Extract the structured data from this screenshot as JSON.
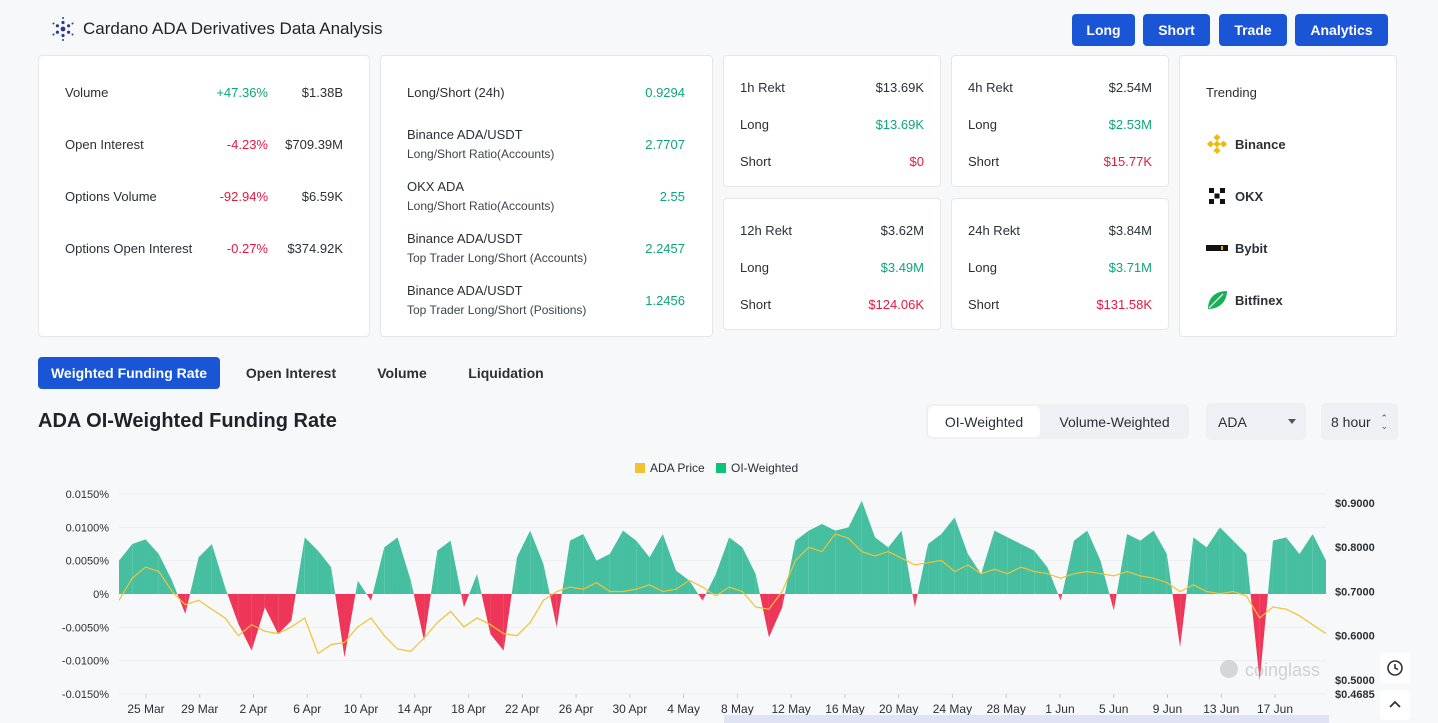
{
  "header": {
    "title": "Cardano ADA Derivatives Data Analysis",
    "buttons": [
      "Long",
      "Short",
      "Trade",
      "Analytics"
    ]
  },
  "colors": {
    "accent": "#1a55d5",
    "positive": "#0ea57b",
    "negative": "#e8173f",
    "area_pos": "#45bfa0",
    "price_line": "#f1c232"
  },
  "stats": [
    {
      "label": "Volume",
      "change": "+47.36%",
      "value": "$1.38B"
    },
    {
      "label": "Open Interest",
      "change": "-4.23%",
      "value": "$709.39M"
    },
    {
      "label": "Options Volume",
      "change": "-92.94%",
      "value": "$6.59K"
    },
    {
      "label": "Options Open Interest",
      "change": "-0.27%",
      "value": "$374.92K"
    }
  ],
  "ratios": [
    {
      "label": "Long/Short (24h)",
      "sub": "",
      "value": "0.9294"
    },
    {
      "label": "Binance ADA/USDT",
      "sub": "Long/Short Ratio(Accounts)",
      "value": "2.7707"
    },
    {
      "label": "OKX ADA",
      "sub": "Long/Short Ratio(Accounts)",
      "value": "2.55"
    },
    {
      "label": "Binance ADA/USDT",
      "sub": "Top Trader Long/Short (Accounts)",
      "value": "2.2457"
    },
    {
      "label": "Binance ADA/USDT",
      "sub": "Top Trader Long/Short (Positions)",
      "value": "1.2456"
    }
  ],
  "rekt": [
    {
      "title": "1h Rekt",
      "total": "$13.69K",
      "long_label": "Long",
      "long": "$13.69K",
      "short_label": "Short",
      "short": "$0"
    },
    {
      "title": "4h Rekt",
      "total": "$2.54M",
      "long_label": "Long",
      "long": "$2.53M",
      "short_label": "Short",
      "short": "$15.77K"
    },
    {
      "title": "12h Rekt",
      "total": "$3.62M",
      "long_label": "Long",
      "long": "$3.49M",
      "short_label": "Short",
      "short": "$124.06K"
    },
    {
      "title": "24h Rekt",
      "total": "$3.84M",
      "long_label": "Long",
      "long": "$3.71M",
      "short_label": "Short",
      "short": "$131.58K"
    }
  ],
  "trending": {
    "title": "Trending",
    "items": [
      {
        "name": "Binance",
        "icon": "binance-icon"
      },
      {
        "name": "OKX",
        "icon": "okx-icon"
      },
      {
        "name": "Bybit",
        "icon": "bybit-icon"
      },
      {
        "name": "Bitfinex",
        "icon": "bitfinex-icon"
      }
    ]
  },
  "tabs": [
    "Weighted Funding Rate",
    "Open Interest",
    "Volume",
    "Liquidation"
  ],
  "section": {
    "title": "ADA OI-Weighted Funding Rate",
    "segments": [
      "OI-Weighted",
      "Volume-Weighted"
    ],
    "coin_select": "ADA",
    "interval_select": "8 hour"
  },
  "watermark": "coinglass",
  "chart_data": {
    "type": "area",
    "legend": [
      "ADA Price",
      "OI-Weighted"
    ],
    "legend_position": "top-center",
    "x_ticks": [
      "25 Mar",
      "29 Mar",
      "2 Apr",
      "6 Apr",
      "10 Apr",
      "14 Apr",
      "18 Apr",
      "22 Apr",
      "26 Apr",
      "30 Apr",
      "4 May",
      "8 May",
      "12 May",
      "16 May",
      "20 May",
      "24 May",
      "28 May",
      "1 Jun",
      "5 Jun",
      "9 Jun",
      "13 Jun",
      "17 Jun"
    ],
    "y_left_ticks": [
      "0.0150%",
      "0.0100%",
      "0.0050%",
      "0%",
      "-0.0050%",
      "-0.0100%",
      "-0.0150%"
    ],
    "y_left_range": [
      -0.015,
      0.015
    ],
    "y_right_ticks": [
      "$0.9000",
      "$0.8000",
      "$0.7000",
      "$0.6000",
      "$0.5000",
      "$0.4685"
    ],
    "y_right_range": [
      0.4685,
      0.92
    ],
    "grid": true,
    "series": [
      {
        "name": "OI-Weighted",
        "unit": "%",
        "values": [
          0.005,
          0.0075,
          0.0082,
          0.006,
          0.002,
          -0.003,
          0.0055,
          0.0075,
          0.001,
          -0.0045,
          -0.0085,
          -0.002,
          -0.006,
          -0.004,
          0.0085,
          0.0065,
          0.004,
          -0.0095,
          0.002,
          -0.001,
          0.007,
          0.0085,
          0.002,
          -0.007,
          0.0065,
          0.008,
          -0.002,
          0.003,
          -0.006,
          -0.0085,
          0.0055,
          0.0095,
          0.0045,
          -0.005,
          0.008,
          0.009,
          0.005,
          0.006,
          0.0095,
          0.008,
          0.0055,
          0.009,
          0.0035,
          0.002,
          -0.001,
          0.003,
          0.0085,
          0.007,
          0.003,
          -0.0065,
          -0.002,
          0.008,
          0.0095,
          0.0105,
          0.0095,
          0.01,
          0.014,
          0.0085,
          0.007,
          0.0095,
          -0.002,
          0.0075,
          0.009,
          0.0115,
          0.006,
          0.003,
          0.0095,
          0.0085,
          0.0075,
          0.0065,
          0.004,
          -0.001,
          0.008,
          0.0095,
          0.005,
          -0.0025,
          0.009,
          0.008,
          0.0095,
          0.006,
          -0.008,
          0.0085,
          0.007,
          0.01,
          0.008,
          0.006,
          -0.013,
          0.008,
          0.0085,
          0.006,
          0.009,
          0.005
        ]
      },
      {
        "name": "ADA Price",
        "unit": "USD",
        "values": [
          0.68,
          0.73,
          0.755,
          0.745,
          0.7,
          0.67,
          0.68,
          0.66,
          0.64,
          0.6,
          0.625,
          0.61,
          0.605,
          0.62,
          0.64,
          0.56,
          0.58,
          0.585,
          0.62,
          0.64,
          0.6,
          0.57,
          0.565,
          0.595,
          0.63,
          0.655,
          0.62,
          0.64,
          0.625,
          0.605,
          0.6,
          0.63,
          0.68,
          0.7,
          0.71,
          0.705,
          0.72,
          0.7,
          0.7,
          0.705,
          0.715,
          0.7,
          0.705,
          0.725,
          0.71,
          0.69,
          0.71,
          0.7,
          0.665,
          0.66,
          0.7,
          0.77,
          0.8,
          0.79,
          0.83,
          0.82,
          0.79,
          0.78,
          0.79,
          0.775,
          0.76,
          0.765,
          0.77,
          0.745,
          0.76,
          0.74,
          0.75,
          0.74,
          0.755,
          0.745,
          0.74,
          0.73,
          0.74,
          0.745,
          0.74,
          0.735,
          0.745,
          0.735,
          0.73,
          0.72,
          0.7,
          0.715,
          0.7,
          0.695,
          0.7,
          0.69,
          0.64,
          0.665,
          0.66,
          0.645,
          0.625,
          0.605
        ]
      }
    ]
  }
}
